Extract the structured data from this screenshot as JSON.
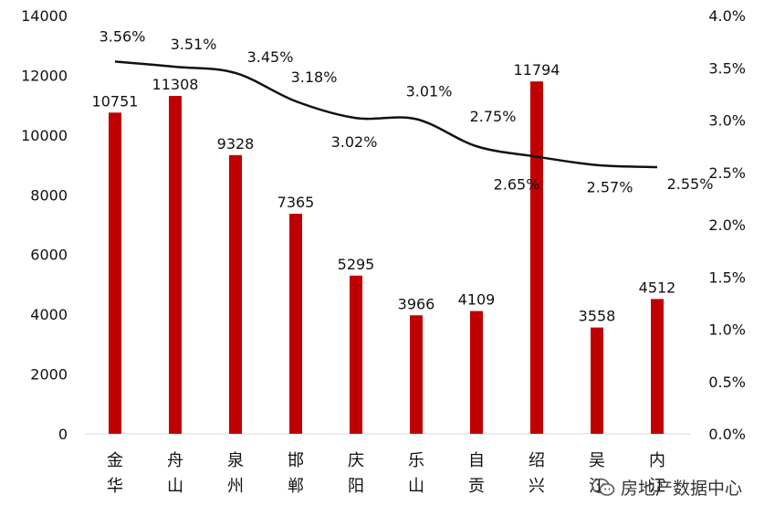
{
  "chart_data": {
    "type": "bar",
    "categories": [
      [
        "金",
        "华"
      ],
      [
        "舟",
        "山"
      ],
      [
        "泉",
        "州"
      ],
      [
        "邯",
        "郸"
      ],
      [
        "庆",
        "阳"
      ],
      [
        "乐",
        "山"
      ],
      [
        "自",
        "贡"
      ],
      [
        "绍",
        "兴"
      ],
      [
        "吴",
        "江"
      ],
      [
        "内",
        "江"
      ]
    ],
    "series": [
      {
        "type": "bar",
        "axis": "left",
        "color": "#c00000",
        "values": [
          10751,
          11308,
          9328,
          7365,
          5295,
          3966,
          4109,
          11794,
          3558,
          4512
        ],
        "labels": [
          "10751",
          "11308",
          "9328",
          "7365",
          "5295",
          "3966",
          "4109",
          "11794",
          "3558",
          "4512"
        ]
      },
      {
        "type": "line",
        "axis": "right",
        "color": "#111111",
        "values": [
          3.56,
          3.51,
          3.45,
          3.18,
          3.02,
          3.01,
          2.75,
          2.65,
          2.57,
          2.55
        ],
        "labels": [
          "3.56%",
          "3.51%",
          "3.45%",
          "3.18%",
          "3.02%",
          "3.01%",
          "2.75%",
          "2.65%",
          "2.57%",
          "2.55%"
        ]
      }
    ],
    "y_left": {
      "min": 0,
      "max": 14000,
      "step": 2000,
      "ticks": [
        "0",
        "2000",
        "4000",
        "6000",
        "8000",
        "10000",
        "12000",
        "14000"
      ]
    },
    "y_right": {
      "min": 0,
      "max": 4.0,
      "step": 0.5,
      "ticks": [
        "0.0%",
        "0.5%",
        "1.0%",
        "1.5%",
        "2.0%",
        "2.5%",
        "3.0%",
        "3.5%",
        "4.0%"
      ]
    },
    "grid": false,
    "legend": "none"
  },
  "watermark": {
    "text": "房地产数据中心",
    "icon": "wechat-icon"
  }
}
